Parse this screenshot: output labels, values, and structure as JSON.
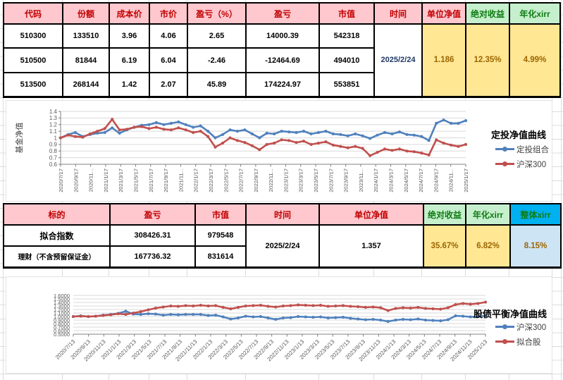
{
  "palette": {
    "header_pink": "#FFC7CE",
    "header_red_text": "#C00000",
    "header_green_bg": "#C6EFCE",
    "header_green_text": "#0E7C11",
    "header_blue_bg": "#00B0F0",
    "value_yellow_bg": "#FFE794",
    "value_brown_text": "#9C6500",
    "value_lightblue_bg": "#CDE4F5",
    "date_navy_text": "#1F3864",
    "chart_blue": "#4F81BD",
    "chart_red": "#C0504D"
  },
  "table1": {
    "headers": {
      "code": "代码",
      "shares": "份额",
      "cost": "成本价",
      "price": "市价",
      "pl_pct": "盈亏（%）",
      "pl": "盈亏",
      "mv": "市值",
      "time": "时间",
      "nav": "单位净值",
      "abs_ret": "绝对收益",
      "xirr": "年化xirr"
    },
    "rows": [
      {
        "code": "510300",
        "shares": "133510",
        "cost": "3.96",
        "price": "4.06",
        "pl_pct": "2.65",
        "pl": "14000.39",
        "mv": "542318"
      },
      {
        "code": "510500",
        "shares": "81844",
        "cost": "6.19",
        "price": "6.04",
        "pl_pct": "-2.46",
        "pl": "-12464.69",
        "mv": "494010"
      },
      {
        "code": "513500",
        "shares": "268144",
        "cost": "1.42",
        "price": "2.07",
        "pl_pct": "45.89",
        "pl": "174224.97",
        "mv": "553851"
      }
    ],
    "time": "2025/2/24",
    "nav": "1.186",
    "abs_ret": "12.35%",
    "xirr": "4.99%"
  },
  "table2": {
    "headers": {
      "target": "标的",
      "pl": "盈亏",
      "mv": "市值",
      "time": "时间",
      "nav": "单位净值",
      "abs_ret": "绝对收益",
      "xirr": "年化xirr",
      "overall_xirr": "整体xirr"
    },
    "rows": [
      {
        "target": "拟合指数",
        "pl": "308426.31",
        "mv": "979548"
      },
      {
        "target": "理财（不含预留保证金）",
        "pl": "167736.32",
        "mv": "831614"
      }
    ],
    "time": "2025/2/24",
    "nav": "1.357",
    "abs_ret": "35.67%",
    "xirr": "6.82%",
    "overall_xirr": "8.15%"
  },
  "chart_data": [
    {
      "type": "line",
      "title": "定投净值曲线",
      "y_axis_label": "基金净值",
      "ylim": [
        0.6,
        1.4
      ],
      "y_tick_labels": [
        "1.4",
        "1.3",
        "1.2",
        "1.1",
        "1",
        "0.9",
        "0.8",
        "0.7",
        "0.6"
      ],
      "x_labels": [
        "2020/7/17",
        "2020/9/17",
        "2020/11...",
        "2021/1/17",
        "2021/3/17",
        "2021/5/17",
        "2021/7/17",
        "2021/9/17",
        "2021/11...",
        "2022/1/17",
        "2022/3/17",
        "2022/5/17",
        "2022/7/17",
        "2022/9/17",
        "2022/11...",
        "2023/1/17",
        "2023/3/17",
        "2023/5/17",
        "2023/7/17",
        "2023/9/17",
        "2023/11...",
        "2024/1/17",
        "2024/3/17",
        "2024/5/17",
        "2024/7/17",
        "2024/9/17",
        "2024/11...",
        "2025/1/17"
      ],
      "x_label_rotation": "vertical",
      "legend_position": "right",
      "grid": true,
      "series": [
        {
          "name": "定投组合",
          "color": "#4F81BD",
          "values": [
            1.0,
            1.05,
            1.08,
            1.02,
            1.05,
            1.07,
            1.08,
            1.15,
            1.07,
            1.12,
            1.16,
            1.19,
            1.2,
            1.23,
            1.2,
            1.22,
            1.24,
            1.2,
            1.16,
            1.18,
            1.1,
            1.0,
            1.05,
            1.12,
            1.1,
            1.12,
            1.06,
            1.0,
            1.07,
            1.06,
            1.1,
            1.09,
            1.08,
            1.1,
            1.06,
            1.08,
            1.1,
            1.06,
            1.05,
            1.03,
            1.06,
            1.03,
            0.99,
            1.04,
            1.08,
            1.06,
            1.09,
            1.05,
            1.04,
            1.02,
            0.96,
            1.22,
            1.27,
            1.22,
            1.22,
            1.26
          ]
        },
        {
          "name": "沪深300",
          "color": "#C0504D",
          "values": [
            1.0,
            1.04,
            1.02,
            1.01,
            1.06,
            1.1,
            1.14,
            1.28,
            1.12,
            1.13,
            1.16,
            1.17,
            1.14,
            1.16,
            1.13,
            1.12,
            1.15,
            1.12,
            1.08,
            1.1,
            1.02,
            0.86,
            0.92,
            1.0,
            0.96,
            0.93,
            0.88,
            0.82,
            0.9,
            0.92,
            0.97,
            0.96,
            0.93,
            0.95,
            0.9,
            0.92,
            0.94,
            0.89,
            0.87,
            0.85,
            0.87,
            0.84,
            0.73,
            0.78,
            0.83,
            0.81,
            0.83,
            0.8,
            0.79,
            0.77,
            0.74,
            0.97,
            0.92,
            0.89,
            0.87,
            0.9
          ]
        }
      ]
    },
    {
      "type": "line",
      "title": "股债平衡净值曲线",
      "y_axis_label": "",
      "ylim": [
        0.5,
        1.6
      ],
      "y_tick_labels": [
        "1.6000",
        "1.5000",
        "1.4000",
        "1.3000",
        "1.2000",
        "1.1000",
        "1.0000",
        "0.9000",
        "0.8000",
        "0.7000",
        "0.6000",
        "0.5000"
      ],
      "x_labels": [
        "2020/7/13",
        "2020/9/13",
        "2020/11/13",
        "2021/1/13",
        "2021/3/13",
        "2021/5/13",
        "2021/7/13",
        "2021/9/13",
        "2021/11/13",
        "2022/1/13",
        "2022/3/13",
        "2022/5/13",
        "2022/7/13",
        "2022/9/13",
        "2022/11/13",
        "2023/1/13",
        "2023/3/13",
        "2023/5/13",
        "2023/7/13",
        "2023/9/13",
        "2023/11/13",
        "2024/1/13",
        "2024/3/13",
        "2024/5/13",
        "2024/7/13",
        "2024/9/13",
        "2024/11/13",
        "2025/1/13"
      ],
      "x_label_rotation": "diagonal",
      "legend_position": "right",
      "grid": true,
      "series": [
        {
          "name": "沪深300",
          "color": "#4F81BD",
          "values": [
            1.0,
            1.02,
            1.0,
            1.01,
            1.04,
            1.06,
            1.09,
            1.15,
            1.07,
            1.06,
            1.08,
            1.07,
            1.04,
            1.06,
            1.05,
            1.06,
            1.06,
            1.06,
            1.03,
            1.04,
            0.99,
            0.93,
            0.96,
            1.01,
            0.99,
            1.0,
            0.96,
            0.92,
            0.96,
            0.97,
            1.0,
            0.99,
            0.98,
            0.99,
            0.96,
            0.97,
            0.98,
            0.95,
            0.93,
            0.91,
            0.92,
            0.9,
            0.86,
            0.9,
            0.92,
            0.91,
            0.93,
            0.9,
            0.89,
            0.88,
            0.91,
            1.02,
            1.01,
            0.99,
            1.0,
            1.02
          ]
        },
        {
          "name": "拟合股",
          "color": "#C0504D",
          "values": [
            1.0,
            1.01,
            1.0,
            1.01,
            1.03,
            1.05,
            1.08,
            1.06,
            1.1,
            1.14,
            1.19,
            1.24,
            1.27,
            1.3,
            1.29,
            1.31,
            1.3,
            1.32,
            1.3,
            1.31,
            1.26,
            1.22,
            1.26,
            1.3,
            1.31,
            1.32,
            1.29,
            1.27,
            1.3,
            1.31,
            1.33,
            1.32,
            1.31,
            1.32,
            1.29,
            1.3,
            1.31,
            1.29,
            1.28,
            1.26,
            1.27,
            1.25,
            1.17,
            1.23,
            1.25,
            1.24,
            1.26,
            1.23,
            1.22,
            1.21,
            1.25,
            1.34,
            1.37,
            1.35,
            1.37,
            1.41
          ]
        }
      ]
    }
  ]
}
